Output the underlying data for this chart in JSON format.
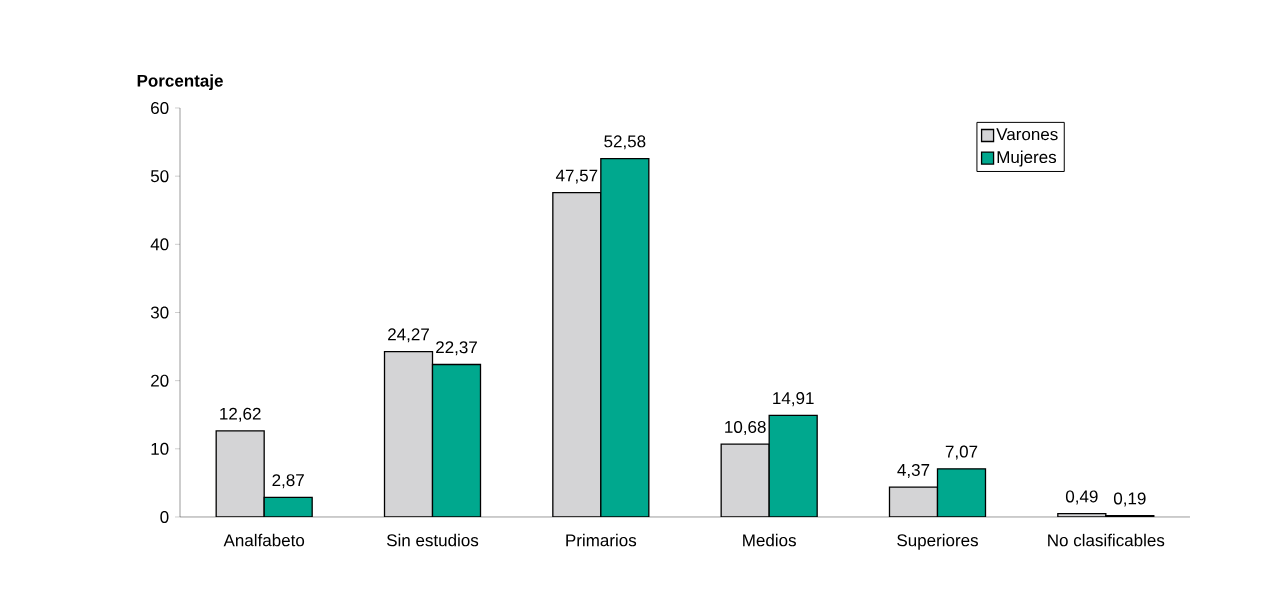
{
  "chart_data": {
    "type": "bar",
    "ylabel": "Porcentaje",
    "categories": [
      "Analfabeto",
      "Sin estudios",
      "Primarios",
      "Medios",
      "Superiores",
      "No clasificables"
    ],
    "series": [
      {
        "name": "Varones",
        "color": "#d4d4d6",
        "values": [
          12.62,
          24.27,
          47.57,
          10.68,
          4.37,
          0.49
        ],
        "value_labels": [
          "12,62",
          "24,27",
          "47,57",
          "10,68",
          "4,37",
          "0,49"
        ]
      },
      {
        "name": "Mujeres",
        "color": "#00a88e",
        "values": [
          2.87,
          22.37,
          52.58,
          14.91,
          7.07,
          0.19
        ],
        "value_labels": [
          "2,87",
          "22,37",
          "52,58",
          "14,91",
          "7,07",
          "0,19"
        ]
      }
    ],
    "ylim": [
      0,
      60
    ],
    "yticks": [
      0,
      10,
      20,
      30,
      40,
      50,
      60
    ],
    "grid": false,
    "legend": "top right"
  }
}
